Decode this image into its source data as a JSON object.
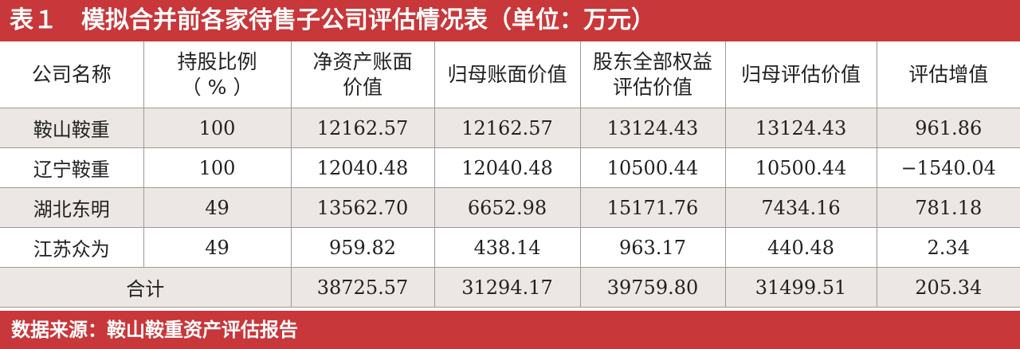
{
  "title": "表１　模拟合并前各家待售子公司评估情况表（单位：万元）",
  "table": {
    "headers": [
      [
        "公司名称"
      ],
      [
        "持股比例",
        "（ % ）"
      ],
      [
        "净资产账面",
        "价值"
      ],
      [
        "归母账面价值"
      ],
      [
        "股东全部权益",
        "评估价值"
      ],
      [
        "归母评估价值"
      ],
      [
        "评估增值"
      ]
    ],
    "rows": [
      [
        "鞍山鞍重",
        "100",
        "12162.57",
        "12162.57",
        "13124.43",
        "13124.43",
        "961.86"
      ],
      [
        "辽宁鞍重",
        "100",
        "12040.48",
        "12040.48",
        "10500.44",
        "10500.44",
        "−1540.04"
      ],
      [
        "湖北东明",
        "49",
        "13562.70",
        "6652.98",
        "15171.76",
        "7434.16",
        "781.18"
      ],
      [
        "江苏众为",
        "49",
        "959.82",
        "438.14",
        "963.17",
        "440.48",
        "2.34"
      ]
    ],
    "total": [
      "合计",
      "38725.57",
      "31294.17",
      "39759.80",
      "31499.51",
      "205.34"
    ]
  },
  "source": "数据来源：鞍山鞍重资产评估报告"
}
